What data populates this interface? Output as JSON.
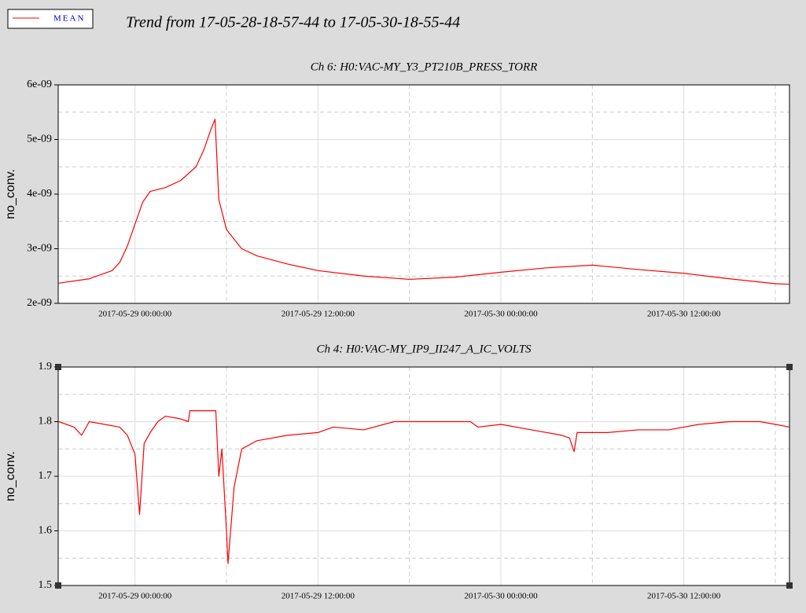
{
  "title": "Trend from 17-05-28-18-57-44 to 17-05-30-18-55-44",
  "chart_data": [
    {
      "type": "line",
      "title": "Ch 6: H0:VAC-MY_Y3_PT210B_PRESS_TORR",
      "ylabel": "no_conv.",
      "x": [
        "2017-05-28 19:00:00",
        "2017-05-28 21:00:00",
        "2017-05-28 22:30:00",
        "2017-05-28 23:00:00",
        "2017-05-28 23:30:00",
        "2017-05-29 00:00:00",
        "2017-05-29 00:30:00",
        "2017-05-29 01:00:00",
        "2017-05-29 02:00:00",
        "2017-05-29 03:00:00",
        "2017-05-29 04:00:00",
        "2017-05-29 04:30:00",
        "2017-05-29 05:00:00",
        "2017-05-29 05:15:00",
        "2017-05-29 05:30:00",
        "2017-05-29 06:00:00",
        "2017-05-29 07:00:00",
        "2017-05-29 08:00:00",
        "2017-05-29 10:00:00",
        "2017-05-29 12:00:00",
        "2017-05-29 15:00:00",
        "2017-05-29 18:00:00",
        "2017-05-29 21:00:00",
        "2017-05-30 00:00:00",
        "2017-05-30 03:00:00",
        "2017-05-30 06:00:00",
        "2017-05-30 09:00:00",
        "2017-05-30 12:00:00",
        "2017-05-30 15:00:00",
        "2017-05-30 18:00:00",
        "2017-05-30 18:55:44"
      ],
      "series": [
        {
          "name": "MEAN",
          "color": "#ff0000",
          "values": [
            2.37e-09,
            2.45e-09,
            2.6e-09,
            2.75e-09,
            3.05e-09,
            3.45e-09,
            3.85e-09,
            4.05e-09,
            4.12e-09,
            4.25e-09,
            4.5e-09,
            4.8e-09,
            5.2e-09,
            5.37e-09,
            3.9e-09,
            3.35e-09,
            3e-09,
            2.87e-09,
            2.72e-09,
            2.6e-09,
            2.5e-09,
            2.44e-09,
            2.48e-09,
            2.57e-09,
            2.65e-09,
            2.7e-09,
            2.62e-09,
            2.55e-09,
            2.45e-09,
            2.36e-09,
            2.35e-09
          ]
        }
      ],
      "xlim": [
        "2017-05-28 18:57:44",
        "2017-05-30 18:55:44"
      ],
      "xticks": [
        "2017-05-29 00:00:00",
        "2017-05-29 12:00:00",
        "2017-05-30 00:00:00",
        "2017-05-30 12:00:00"
      ],
      "x_minor_ticks": [
        "2017-05-29 06:00:00",
        "2017-05-29 18:00:00",
        "2017-05-30 06:00:00",
        "2017-05-30 18:00:00"
      ],
      "ylim": [
        2e-09,
        6e-09
      ],
      "yticks": [
        {
          "value": 2e-09,
          "label": "2e-09"
        },
        {
          "value": 3e-09,
          "label": "3e-09"
        },
        {
          "value": 4e-09,
          "label": "4e-09"
        },
        {
          "value": 5e-09,
          "label": "5e-09"
        },
        {
          "value": 6e-09,
          "label": "6e-09"
        }
      ],
      "y_minor_ticks": [
        2.5e-09,
        3.5e-09,
        4.5e-09,
        5.5e-09
      ],
      "grid": true
    },
    {
      "type": "line",
      "title": "Ch 4: H0:VAC-MY_IP9_II247_A_IC_VOLTS",
      "ylabel": "no_conv.",
      "x": [
        "2017-05-28 19:00:00",
        "2017-05-28 20:00:00",
        "2017-05-28 20:30:00",
        "2017-05-28 21:00:00",
        "2017-05-28 22:00:00",
        "2017-05-28 23:00:00",
        "2017-05-28 23:30:00",
        "2017-05-29 00:00:00",
        "2017-05-29 00:18:00",
        "2017-05-29 00:36:00",
        "2017-05-29 01:00:00",
        "2017-05-29 01:30:00",
        "2017-05-29 02:00:00",
        "2017-05-29 03:00:00",
        "2017-05-29 03:30:00",
        "2017-05-29 03:36:00",
        "2017-05-29 05:18:00",
        "2017-05-29 05:30:00",
        "2017-05-29 05:42:00",
        "2017-05-29 06:00:00",
        "2017-05-29 06:06:00",
        "2017-05-29 06:30:00",
        "2017-05-29 07:00:00",
        "2017-05-29 08:00:00",
        "2017-05-29 10:00:00",
        "2017-05-29 12:00:00",
        "2017-05-29 13:00:00",
        "2017-05-29 15:00:00",
        "2017-05-29 17:00:00",
        "2017-05-29 20:00:00",
        "2017-05-29 22:00:00",
        "2017-05-29 22:30:00",
        "2017-05-30 00:00:00",
        "2017-05-30 02:00:00",
        "2017-05-30 04:00:00",
        "2017-05-30 04:30:00",
        "2017-05-30 04:48:00",
        "2017-05-30 05:00:00",
        "2017-05-30 07:00:00",
        "2017-05-30 09:00:00",
        "2017-05-30 11:00:00",
        "2017-05-30 13:00:00",
        "2017-05-30 15:00:00",
        "2017-05-30 17:00:00",
        "2017-05-30 18:00:00",
        "2017-05-30 18:55:44"
      ],
      "series": [
        {
          "color": "#ff0000",
          "values": [
            1.8,
            1.79,
            1.775,
            1.8,
            1.795,
            1.79,
            1.775,
            1.74,
            1.63,
            1.76,
            1.78,
            1.8,
            1.81,
            1.805,
            1.8,
            1.82,
            1.82,
            1.7,
            1.75,
            1.6,
            1.54,
            1.68,
            1.75,
            1.765,
            1.775,
            1.78,
            1.79,
            1.785,
            1.8,
            1.8,
            1.8,
            1.79,
            1.795,
            1.785,
            1.775,
            1.77,
            1.745,
            1.78,
            1.78,
            1.785,
            1.785,
            1.795,
            1.8,
            1.8,
            1.795,
            1.79
          ]
        }
      ],
      "xlim": [
        "2017-05-28 18:57:44",
        "2017-05-30 18:55:44"
      ],
      "xticks": [
        "2017-05-29 00:00:00",
        "2017-05-29 12:00:00",
        "2017-05-30 00:00:00",
        "2017-05-30 12:00:00"
      ],
      "x_minor_ticks": [
        "2017-05-29 06:00:00",
        "2017-05-29 18:00:00",
        "2017-05-30 06:00:00",
        "2017-05-30 18:00:00"
      ],
      "ylim": [
        1.5,
        1.9
      ],
      "yticks": [
        1.5,
        1.6,
        1.7,
        1.8,
        1.9
      ],
      "y_minor_ticks": [
        1.55,
        1.65,
        1.75,
        1.85
      ],
      "grid": true
    }
  ]
}
